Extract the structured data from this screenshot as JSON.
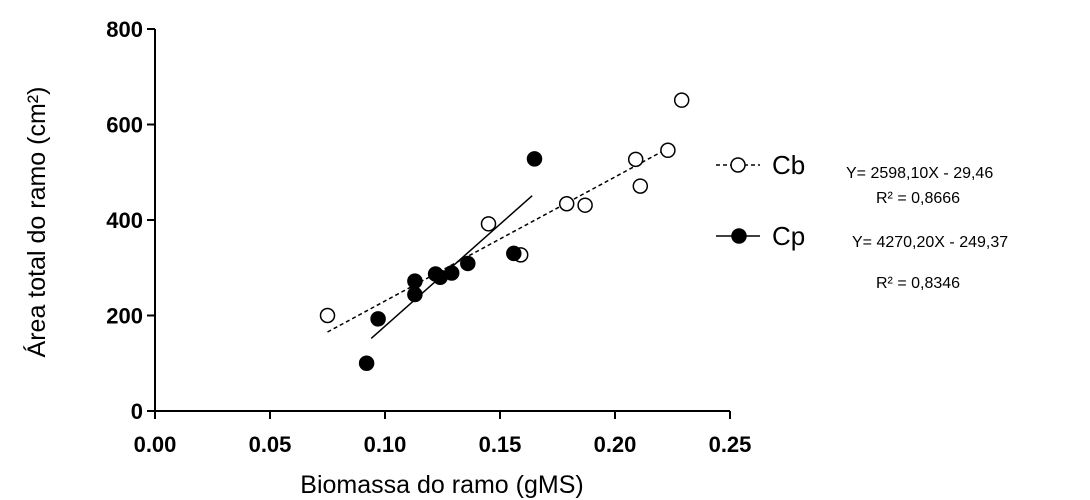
{
  "chart_data": {
    "type": "scatter",
    "xlabel": "Biomassa  do ramo (gMS)",
    "ylabel": "Área total do ramo (cm²)",
    "xlim": [
      0.0,
      0.25
    ],
    "ylim": [
      0,
      800
    ],
    "x_ticks": [
      "0.00",
      "0.05",
      "0.10",
      "0.15",
      "0.20",
      "0.25"
    ],
    "y_ticks": [
      "0",
      "200",
      "400",
      "600",
      "800"
    ],
    "x_tick_values": [
      0.0,
      0.05,
      0.1,
      0.15,
      0.2,
      0.25
    ],
    "y_tick_values": [
      0,
      200,
      400,
      600,
      800
    ],
    "grid": false,
    "legend_position": "right",
    "series": [
      {
        "name": "Cb",
        "marker": "open-circle",
        "line_style": "dashed",
        "color": "#000000",
        "points": [
          {
            "x": 0.075,
            "y": 200
          },
          {
            "x": 0.145,
            "y": 392
          },
          {
            "x": 0.159,
            "y": 327
          },
          {
            "x": 0.179,
            "y": 434
          },
          {
            "x": 0.187,
            "y": 431
          },
          {
            "x": 0.209,
            "y": 527
          },
          {
            "x": 0.211,
            "y": 471
          },
          {
            "x": 0.223,
            "y": 546
          },
          {
            "x": 0.229,
            "y": 651
          }
        ],
        "fit": {
          "x_range": [
            0.075,
            0.223
          ],
          "slope": 2598.1,
          "intercept": -29.46
        },
        "equation": "Y= 2598,10X - 29,46",
        "r2": "R² = 0,8666"
      },
      {
        "name": "Cp",
        "marker": "filled-circle",
        "line_style": "solid",
        "color": "#000000",
        "points": [
          {
            "x": 0.092,
            "y": 100
          },
          {
            "x": 0.097,
            "y": 193
          },
          {
            "x": 0.113,
            "y": 272
          },
          {
            "x": 0.113,
            "y": 244
          },
          {
            "x": 0.122,
            "y": 287
          },
          {
            "x": 0.124,
            "y": 280
          },
          {
            "x": 0.129,
            "y": 289
          },
          {
            "x": 0.136,
            "y": 309
          },
          {
            "x": 0.156,
            "y": 330
          },
          {
            "x": 0.165,
            "y": 528
          }
        ],
        "fit": {
          "x_range": [
            0.094,
            0.164
          ],
          "slope": 4270.2,
          "intercept": -249.37
        },
        "equation": "Y= 4270,20X - 249,37",
        "r2": "R² = 0,8346"
      }
    ]
  }
}
